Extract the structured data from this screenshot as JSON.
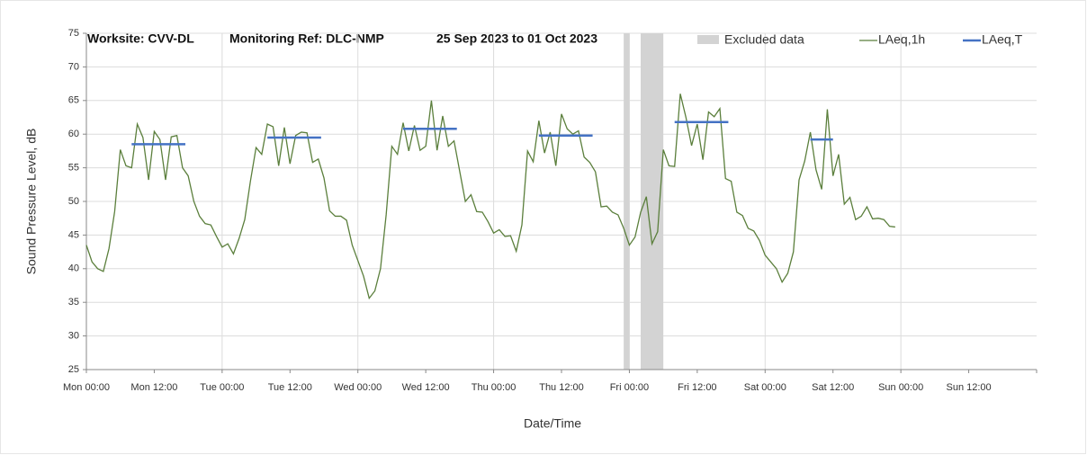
{
  "chart_data": {
    "type": "line",
    "title_parts": [
      "Worksite: CVV-DL",
      "Monitoring Ref: DLC-NMP",
      "25 Sep 2023 to 01 Oct 2023"
    ],
    "x_label": "Date/Time",
    "y_label": "Sound Pressure Level, dB",
    "xlim": [
      0,
      168
    ],
    "xticks": [
      {
        "value": 0,
        "label": "Mon 00:00"
      },
      {
        "value": 12,
        "label": "Mon 12:00"
      },
      {
        "value": 24,
        "label": "Tue 00:00"
      },
      {
        "value": 36,
        "label": "Tue 12:00"
      },
      {
        "value": 48,
        "label": "Wed 00:00"
      },
      {
        "value": 60,
        "label": "Wed 12:00"
      },
      {
        "value": 72,
        "label": "Thu 00:00"
      },
      {
        "value": 84,
        "label": "Thu 12:00"
      },
      {
        "value": 96,
        "label": "Fri 00:00"
      },
      {
        "value": 108,
        "label": "Fri 12:00"
      },
      {
        "value": 120,
        "label": "Sat 00:00"
      },
      {
        "value": 132,
        "label": "Sat 12:00"
      },
      {
        "value": 144,
        "label": "Sun 00:00"
      },
      {
        "value": 156,
        "label": "Sun 12:00"
      }
    ],
    "ylim": [
      25,
      75
    ],
    "yticks": [
      25,
      30,
      35,
      40,
      45,
      50,
      55,
      60,
      65,
      70,
      75
    ],
    "grid": true,
    "excluded": {
      "name": "Excluded data",
      "color": "#d3d3d3",
      "ranges": [
        [
          95,
          96
        ],
        [
          98,
          102
        ]
      ]
    },
    "series": [
      {
        "name": "LAeq,1h",
        "color": "#5b7f3c",
        "x": [
          0,
          1,
          2,
          3,
          4,
          5,
          6,
          7,
          8,
          9,
          10,
          11,
          12,
          13,
          14,
          15,
          16,
          17,
          18,
          19,
          20,
          21,
          22,
          23,
          24,
          25,
          26,
          27,
          28,
          29,
          30,
          31,
          32,
          33,
          34,
          35,
          36,
          37,
          38,
          39,
          40,
          41,
          42,
          43,
          44,
          45,
          46,
          47,
          48,
          49,
          50,
          51,
          52,
          53,
          54,
          55,
          56,
          57,
          58,
          59,
          60,
          61,
          62,
          63,
          64,
          65,
          66,
          67,
          68,
          69,
          70,
          71,
          72,
          73,
          74,
          75,
          76,
          77,
          78,
          79,
          80,
          81,
          82,
          83,
          84,
          85,
          86,
          87,
          88,
          89,
          90,
          91,
          92,
          93,
          94,
          95,
          96,
          97,
          98,
          99,
          100,
          101,
          102,
          103,
          104,
          105,
          106,
          107,
          108,
          109,
          110,
          111,
          112,
          113,
          114,
          115,
          116,
          117,
          118,
          119,
          120,
          121,
          122,
          123,
          124,
          125,
          126,
          127,
          128,
          129,
          130,
          131,
          132,
          133,
          134,
          135,
          136,
          137,
          138,
          139,
          140,
          141,
          142,
          143
        ],
        "values": [
          43.5,
          41,
          40,
          39.6,
          43,
          48.5,
          57.7,
          55.3,
          55,
          61.5,
          59.5,
          53.2,
          60.4,
          59.2,
          53.2,
          59.6,
          59.8,
          55,
          53.8,
          50,
          47.8,
          46.7,
          46.5,
          44.8,
          43.2,
          43.7,
          42.2,
          44.5,
          47.3,
          53,
          58,
          57,
          61.5,
          61.1,
          55.3,
          61,
          55.6,
          59.8,
          60.3,
          60.2,
          55.8,
          56.3,
          53.5,
          48.6,
          47.8,
          47.8,
          47.2,
          43.5,
          41.2,
          38.9,
          35.6,
          36.7,
          40,
          48,
          58.2,
          57,
          61.7,
          57.5,
          61.3,
          57.6,
          58.2,
          65,
          57.6,
          62.7,
          58.2,
          59,
          54.5,
          50,
          51,
          48.5,
          48.4,
          47,
          45.3,
          45.8,
          44.8,
          44.9,
          42.6,
          46.5,
          57.5,
          55.9,
          62,
          57.2,
          60.3,
          55.3,
          63,
          60.8,
          60,
          60.5,
          56.6,
          55.8,
          54.4,
          49.2,
          49.3,
          48.4,
          48,
          46,
          43.5,
          44.7,
          48.4,
          50.7,
          43.7,
          45.5,
          57.7,
          55.3,
          55.2,
          66,
          62.5,
          58.3,
          61.5,
          56.2,
          63.3,
          62.6,
          63.8,
          53.4,
          53,
          48.4,
          47.9,
          46,
          45.6,
          44.2,
          42,
          41,
          40,
          38,
          39.3,
          42.5,
          53.2,
          56,
          60.3,
          54.7,
          51.8,
          63.7,
          53.8,
          57,
          49.6,
          50.6,
          47.3,
          47.8,
          49.2,
          47.4,
          47.5,
          47.3,
          46.3,
          46.2
        ]
      },
      {
        "name": "LAeq,T",
        "color": "#4472c4",
        "segments": [
          {
            "x": [
              8,
              17.5
            ],
            "value": 58.5
          },
          {
            "x": [
              32,
              41.5
            ],
            "value": 59.5
          },
          {
            "x": [
              56,
              65.5
            ],
            "value": 60.8
          },
          {
            "x": [
              80,
              89.5
            ],
            "value": 59.8
          },
          {
            "x": [
              104,
              113.5
            ],
            "value": 61.8
          },
          {
            "x": [
              128,
              132
            ],
            "value": 59.2
          }
        ]
      }
    ]
  }
}
